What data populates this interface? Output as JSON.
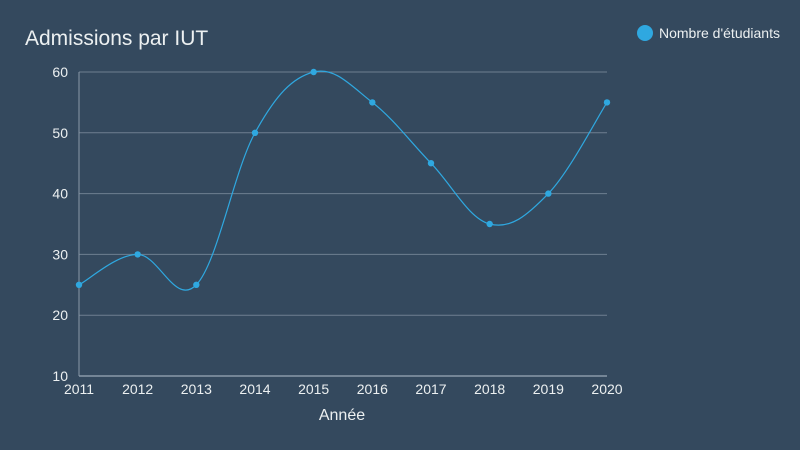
{
  "chart_data": {
    "type": "line",
    "title": "Admissions par IUT",
    "xlabel": "Année",
    "ylabel": "",
    "categories": [
      "2011",
      "2012",
      "2013",
      "2014",
      "2015",
      "2016",
      "2017",
      "2018",
      "2019",
      "2020"
    ],
    "series": [
      {
        "name": "Nombre d'étudiants",
        "values": [
          25,
          30,
          25,
          50,
          60,
          55,
          45,
          35,
          40,
          55
        ],
        "color": "#2fa8e0"
      }
    ],
    "ylim": [
      10,
      60
    ],
    "yticks": [
      10,
      20,
      30,
      40,
      50,
      60
    ],
    "grid": true,
    "smooth": true,
    "legend_position": "top-right",
    "background_color": "#34495e",
    "grid_color": "#6e7f90"
  }
}
